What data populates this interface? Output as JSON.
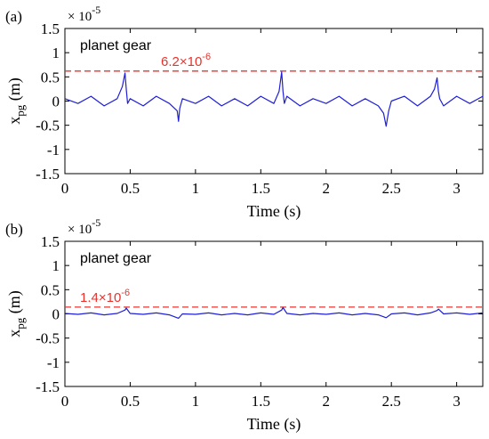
{
  "chart_data": [
    {
      "type": "line",
      "panel_label": "(a)",
      "xlabel": "Time (s)",
      "ylabel_main": "x",
      "ylabel_sub": "pg",
      "ylabel_unit": "(m)",
      "exponent_base": "× 10",
      "exponent_power": "-5",
      "annotation_label": "planet gear",
      "threshold_value": 0.62,
      "threshold_label_base": "6.2×10",
      "threshold_label_power": "-6",
      "xlim": [
        0,
        3.2
      ],
      "ylim": [
        -1.5,
        1.5
      ],
      "xticks": [
        "0",
        "0.5",
        "1",
        "1.5",
        "2",
        "2.5",
        "3"
      ],
      "yticks": [
        "1.5",
        "1",
        "0.5",
        "0",
        "-0.5",
        "-1",
        "-1.5"
      ],
      "series_color": "#1f1fd6",
      "threshold_color": "#e8332d",
      "series": [
        {
          "x": [
            0,
            0.1,
            0.2,
            0.3,
            0.4,
            0.44,
            0.46,
            0.47,
            0.48,
            0.5,
            0.6,
            0.7,
            0.8,
            0.86,
            0.87,
            0.88,
            0.9,
            1.0,
            1.1,
            1.2,
            1.3,
            1.4,
            1.5,
            1.6,
            1.64,
            1.66,
            1.67,
            1.68,
            1.7,
            1.8,
            1.9,
            2.0,
            2.1,
            2.2,
            2.3,
            2.4,
            2.44,
            2.46,
            2.48,
            2.5,
            2.6,
            2.7,
            2.8,
            2.83,
            2.85,
            2.86,
            2.87,
            2.9,
            3.0,
            3.1,
            3.2
          ],
          "y": [
            0.05,
            -0.05,
            0.1,
            -0.1,
            0.05,
            0.3,
            0.58,
            0.25,
            -0.05,
            0.05,
            -0.1,
            0.1,
            -0.05,
            -0.2,
            -0.42,
            -0.15,
            0.05,
            -0.05,
            0.1,
            -0.1,
            0.05,
            -0.1,
            0.1,
            -0.05,
            0.2,
            0.6,
            0.2,
            -0.05,
            0.1,
            -0.1,
            0.05,
            -0.05,
            0.1,
            -0.1,
            0.05,
            -0.1,
            -0.25,
            -0.52,
            -0.2,
            0.0,
            0.1,
            -0.1,
            0.1,
            0.25,
            0.48,
            0.2,
            0.05,
            -0.1,
            0.1,
            -0.05,
            0.1
          ]
        }
      ]
    },
    {
      "type": "line",
      "panel_label": "(b)",
      "xlabel": "Time (s)",
      "ylabel_main": "x",
      "ylabel_sub": "pg",
      "ylabel_unit": "(m)",
      "exponent_base": "× 10",
      "exponent_power": "-5",
      "annotation_label": "planet gear",
      "threshold_value": 0.14,
      "threshold_label_base": "1.4×10",
      "threshold_label_power": "-6",
      "xlim": [
        0,
        3.2
      ],
      "ylim": [
        -1.5,
        1.5
      ],
      "xticks": [
        "0",
        "0.5",
        "1",
        "1.5",
        "2",
        "2.5",
        "3"
      ],
      "yticks": [
        "1.5",
        "1",
        "0.5",
        "0",
        "-0.5",
        "-1",
        "-1.5"
      ],
      "series_color": "#1f1fd6",
      "threshold_color": "#e8332d",
      "series": [
        {
          "x": [
            0,
            0.1,
            0.2,
            0.3,
            0.4,
            0.46,
            0.47,
            0.5,
            0.6,
            0.7,
            0.8,
            0.87,
            0.9,
            1.0,
            1.1,
            1.2,
            1.3,
            1.4,
            1.5,
            1.6,
            1.66,
            1.67,
            1.7,
            1.8,
            1.9,
            2.0,
            2.1,
            2.2,
            2.3,
            2.4,
            2.46,
            2.5,
            2.6,
            2.7,
            2.8,
            2.85,
            2.86,
            2.9,
            3.0,
            3.1,
            3.2
          ],
          "y": [
            0.01,
            -0.01,
            0.02,
            -0.02,
            0.01,
            0.08,
            0.12,
            0.01,
            -0.01,
            0.02,
            -0.02,
            -0.09,
            0.0,
            -0.01,
            0.02,
            -0.02,
            0.01,
            -0.02,
            0.02,
            -0.01,
            0.08,
            0.13,
            0.01,
            -0.02,
            0.01,
            -0.01,
            0.02,
            -0.02,
            0.01,
            -0.02,
            -0.08,
            0.0,
            0.02,
            -0.02,
            0.02,
            0.07,
            0.1,
            0.0,
            0.02,
            -0.01,
            0.02
          ]
        }
      ]
    }
  ]
}
